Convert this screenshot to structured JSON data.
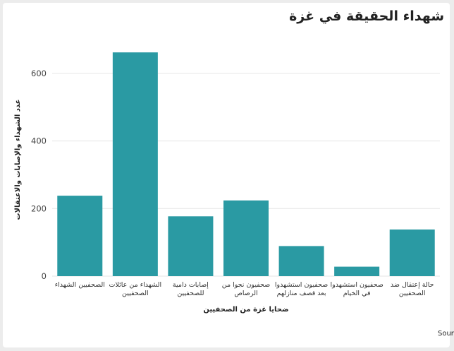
{
  "chart_data": {
    "type": "bar",
    "title": "شهداء الحقيقة في غزة",
    "xlabel": "ضحايا غزة من الصحفيين",
    "ylabel": "عدد الشهداء والإصابات والاعتقالات",
    "categories": [
      [
        "الصحفيين الشهداء"
      ],
      [
        "الشهداء من عائلات",
        "الصحفيين"
      ],
      [
        "إصابات دامية",
        "للصحفيين"
      ],
      [
        "صحفيون نجوا من",
        "الرصاص"
      ],
      [
        "صحفيون استشهدوا",
        "بعد قصف منازلهم"
      ],
      [
        "صحفيون استشهدوا",
        "في الخيام"
      ],
      [
        "حالة إعتقال ضد",
        "الصحفيين"
      ]
    ],
    "values": [
      238,
      662,
      177,
      224,
      89,
      28,
      138
    ],
    "ylim": [
      0,
      700
    ],
    "yticks": [
      0,
      200,
      400,
      600
    ],
    "grid": true,
    "bar_color": "#2a9aa3",
    "source": "نقابة الصحفيين الفلسطينيين والمكتب الإعلامي الحكومي في غزة :Source"
  }
}
